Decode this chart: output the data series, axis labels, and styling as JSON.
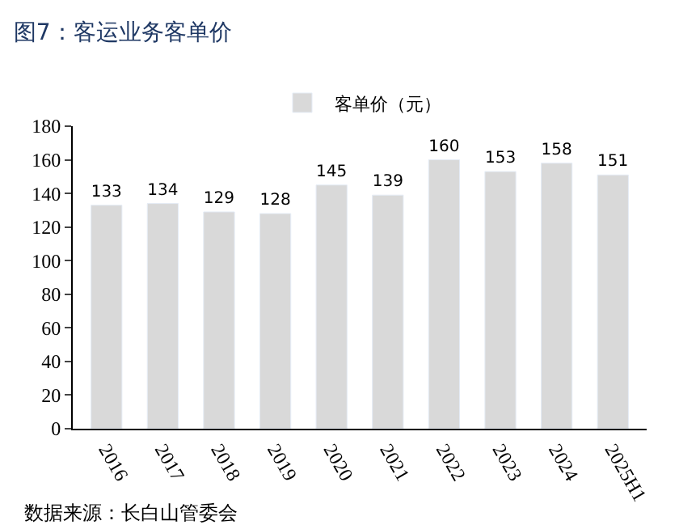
{
  "chart_data": {
    "type": "bar",
    "title": "图7：客运业务客单价",
    "categories": [
      "2016",
      "2017",
      "2018",
      "2019",
      "2020",
      "2021",
      "2022",
      "2023",
      "2024",
      "2025H1"
    ],
    "series": [
      {
        "name": "客单价（元）",
        "color": "#d9d9d9",
        "values": [
          133,
          134,
          129,
          128,
          145,
          139,
          160,
          153,
          158,
          151
        ]
      }
    ],
    "ylim": [
      0,
      180
    ],
    "yticks": [
      0,
      20,
      40,
      60,
      80,
      100,
      120,
      140,
      160,
      180
    ],
    "data_labels": true,
    "legend": "top",
    "annotations": [
      "数据来源：长白山管委会"
    ]
  }
}
